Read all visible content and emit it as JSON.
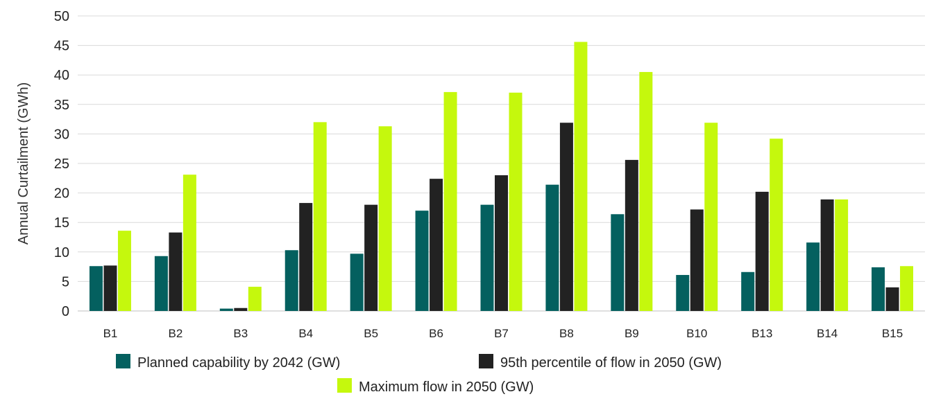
{
  "chart_data": {
    "type": "bar",
    "ylabel": "Annual Curtailment (GWh)",
    "ylim": [
      0,
      50
    ],
    "yticks": [
      0,
      5,
      10,
      15,
      20,
      25,
      30,
      35,
      40,
      45,
      50
    ],
    "grid": true,
    "legend_position": "bottom",
    "categories": [
      "B1",
      "B2",
      "B3",
      "B4",
      "B5",
      "B6",
      "B7",
      "B8",
      "B9",
      "B10",
      "B13",
      "B14",
      "B15"
    ],
    "series": [
      {
        "name": "Planned capability by 2042 (GW)",
        "color": "#04605f",
        "values": [
          7.6,
          9.3,
          0.4,
          10.3,
          9.7,
          17.0,
          18.0,
          21.4,
          16.4,
          6.1,
          6.6,
          11.6,
          7.4
        ]
      },
      {
        "name": "95th percentile of flow in 2050 (GW)",
        "color": "#222222",
        "values": [
          7.7,
          13.3,
          0.5,
          18.3,
          18.0,
          22.4,
          23.0,
          31.9,
          25.6,
          17.2,
          20.2,
          18.9,
          4.0
        ]
      },
      {
        "name": "Maximum flow in 2050 (GW)",
        "color": "#c5f80d",
        "values": [
          13.6,
          23.1,
          4.1,
          32.0,
          31.3,
          37.1,
          37.0,
          45.6,
          40.5,
          31.9,
          29.2,
          18.9,
          7.6
        ]
      }
    ]
  }
}
